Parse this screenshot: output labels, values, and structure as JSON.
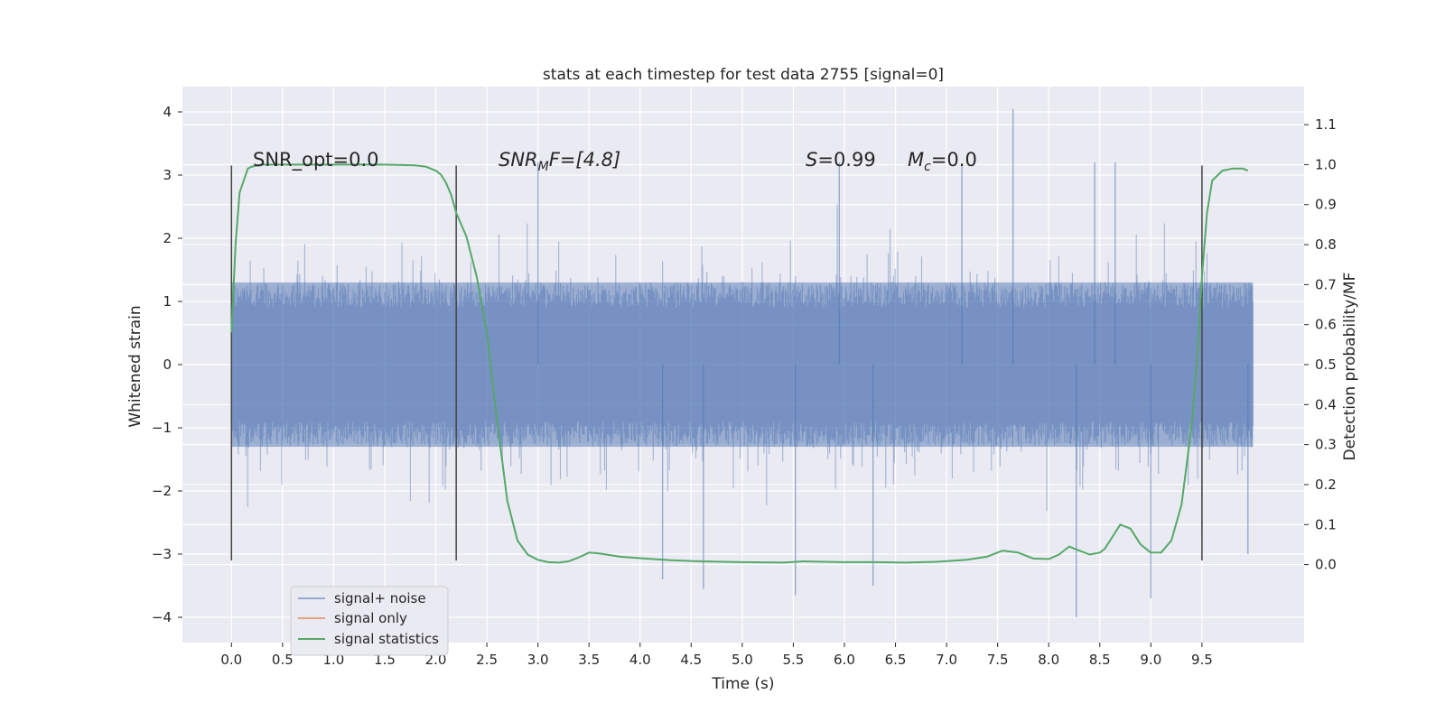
{
  "chart_data": {
    "type": "line",
    "title": "stats at each timestep for test data 2755 [signal=0]",
    "xlabel": "Time (s)",
    "ylabel": "Whitened strain",
    "y2label": "Detection probability/MF",
    "xlim": [
      -0.48,
      10.5
    ],
    "ylim": [
      -4.4,
      4.4
    ],
    "y2lim": [
      -0.195,
      1.195
    ],
    "xticks": [
      "0.0",
      "0.5",
      "1.0",
      "1.5",
      "2.0",
      "2.5",
      "3.0",
      "3.5",
      "4.0",
      "4.5",
      "5.0",
      "5.5",
      "6.0",
      "6.5",
      "7.0",
      "7.5",
      "8.0",
      "8.5",
      "9.0",
      "9.5"
    ],
    "yticks": [
      "4",
      "3",
      "2",
      "1",
      "0",
      "−1",
      "−2",
      "−3",
      "−4"
    ],
    "y2ticks": [
      "1.1",
      "1.0",
      "0.9",
      "0.8",
      "0.7",
      "0.6",
      "0.5",
      "0.4",
      "0.3",
      "0.2",
      "0.1",
      "0.0"
    ],
    "grid": true,
    "legend_position": "lower-left",
    "legend": [
      {
        "label": "signal+ noise",
        "color": "#4c72b0"
      },
      {
        "label": "signal only",
        "color": "#dd8452"
      },
      {
        "label": "signal statistics",
        "color": "#55a868"
      }
    ],
    "annotations": {
      "snr_opt": "SNR_opt=0.0",
      "snr_mf_base": "SNR",
      "snr_mf_sub": "M",
      "snr_mf_rest": "F=[4.8]",
      "s_label": "S",
      "s_value": "=0.99",
      "mc_label": "M",
      "mc_sub": "c",
      "mc_value": "=0.0"
    },
    "vertical_lines_x": [
      0.0,
      2.2,
      9.5
    ],
    "vertical_lines_y_range": [
      -3.1,
      3.15
    ],
    "noise_series": {
      "name": "signal+ noise",
      "color": "#4c72b0",
      "x_range": [
        0.0,
        10.0
      ],
      "envelope": "approximately ±1.3 dense band with spikes to about 4.05 and -4.0",
      "spikes": [
        [
          7.65,
          4.05
        ],
        [
          8.27,
          -4.0
        ],
        [
          9.0,
          -3.7
        ],
        [
          5.52,
          -3.65
        ],
        [
          6.28,
          -3.5
        ],
        [
          4.22,
          -3.4
        ],
        [
          4.62,
          -3.55
        ],
        [
          9.5,
          -2.65
        ],
        [
          9.95,
          -3.0
        ],
        [
          3.0,
          3.2
        ],
        [
          5.95,
          3.2
        ],
        [
          7.15,
          3.15
        ],
        [
          8.45,
          3.2
        ],
        [
          8.65,
          3.2
        ]
      ]
    },
    "statistics_series": {
      "name": "signal statistics",
      "color": "#55a868",
      "x": [
        0.0,
        0.04,
        0.08,
        0.12,
        0.16,
        0.2,
        0.3,
        0.5,
        1.0,
        1.5,
        1.8,
        1.9,
        2.0,
        2.05,
        2.1,
        2.15,
        2.2,
        2.3,
        2.4,
        2.5,
        2.6,
        2.7,
        2.8,
        2.9,
        3.0,
        3.1,
        3.2,
        3.3,
        3.4,
        3.5,
        3.6,
        3.8,
        4.0,
        4.3,
        4.6,
        5.0,
        5.4,
        5.6,
        5.8,
        6.0,
        6.3,
        6.6,
        6.9,
        7.2,
        7.4,
        7.55,
        7.7,
        7.85,
        8.0,
        8.1,
        8.2,
        8.3,
        8.4,
        8.5,
        8.55,
        8.6,
        8.7,
        8.8,
        8.9,
        9.0,
        9.1,
        9.2,
        9.3,
        9.4,
        9.45,
        9.5,
        9.55,
        9.6,
        9.7,
        9.8,
        9.9,
        9.95
      ],
      "y": [
        0.58,
        0.8,
        0.93,
        0.96,
        0.99,
        0.995,
        1.0,
        1.0,
        1.0,
        1.0,
        0.998,
        0.995,
        0.985,
        0.975,
        0.955,
        0.925,
        0.88,
        0.82,
        0.72,
        0.58,
        0.36,
        0.16,
        0.06,
        0.025,
        0.012,
        0.006,
        0.005,
        0.008,
        0.018,
        0.03,
        0.028,
        0.02,
        0.016,
        0.011,
        0.008,
        0.006,
        0.005,
        0.008,
        0.007,
        0.006,
        0.006,
        0.005,
        0.007,
        0.012,
        0.02,
        0.035,
        0.03,
        0.015,
        0.014,
        0.025,
        0.045,
        0.035,
        0.025,
        0.03,
        0.04,
        0.06,
        0.1,
        0.09,
        0.05,
        0.03,
        0.03,
        0.06,
        0.15,
        0.35,
        0.5,
        0.72,
        0.88,
        0.96,
        0.985,
        0.99,
        0.99,
        0.985
      ]
    }
  }
}
